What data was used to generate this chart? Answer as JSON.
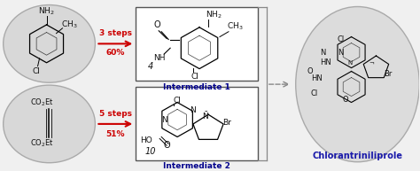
{
  "bg_color": "#f0f0f0",
  "colors": {
    "arrow": "#cc0000",
    "dashed_arrow": "#888888",
    "int_label": "#00008B",
    "product_label": "#1a1aaa",
    "box_border": "#555555",
    "steps_text": "#cc0000",
    "mol_text": "#111111",
    "ellipse_fill": "#d8d8d8",
    "ellipse_edge": "#aaaaaa",
    "large_ellipse_fill": "#dcdcdc",
    "large_ellipse_edge": "#aaaaaa",
    "white": "#ffffff"
  },
  "steps1_text": "3 steps",
  "pct1_text": "60%",
  "steps2_text": "5 steps",
  "pct2_text": "51%",
  "int1_label": "Intermediate 1",
  "int2_label": "Intermediate 2",
  "product_label": "Chlorantriniliprole",
  "int1_num": "4",
  "int2_num": "10"
}
